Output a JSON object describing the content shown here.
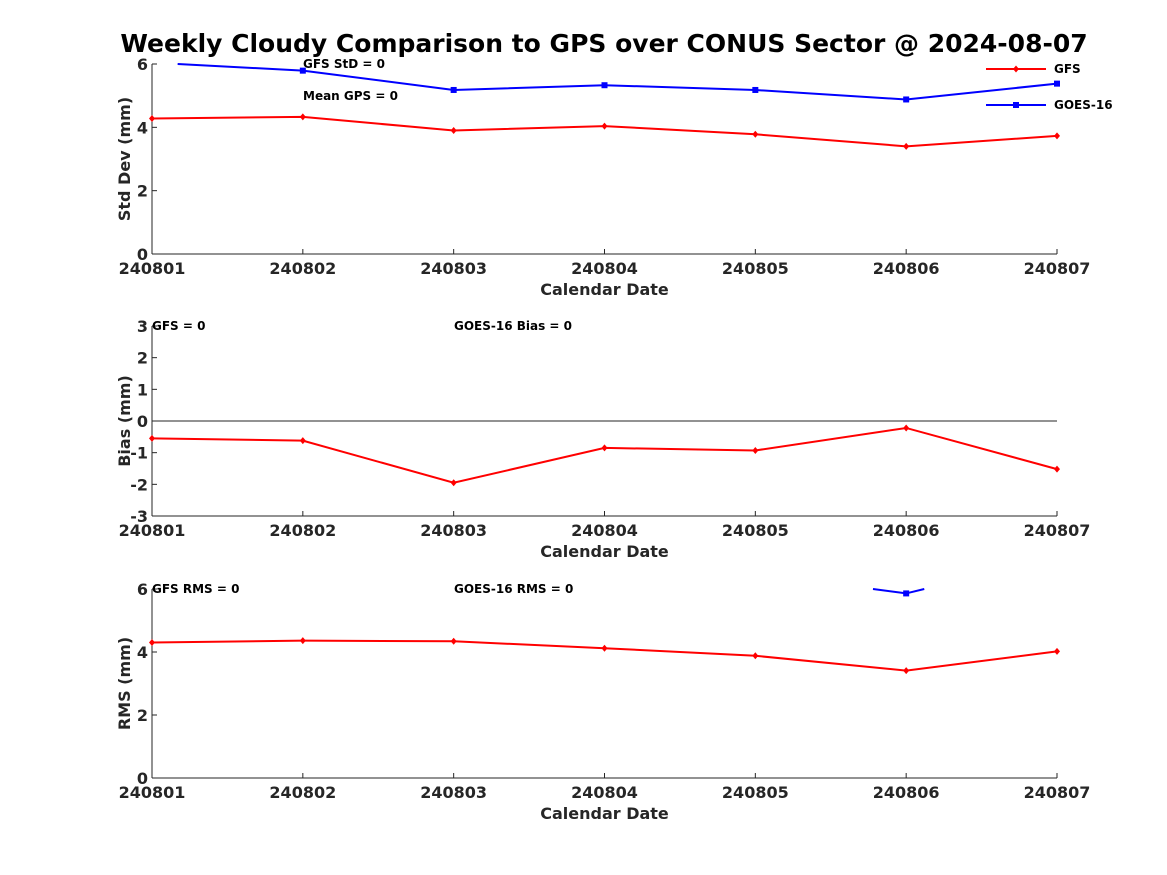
{
  "figure_title": "Weekly Cloudy Comparison to GPS over CONUS Sector @ 2024-08-07",
  "colors": {
    "GFS": "#ff0000",
    "GOES-16": "#0000ff"
  },
  "legend": {
    "placement": "top-right",
    "entries": [
      "GFS",
      "GOES-16"
    ]
  },
  "chart_data": [
    {
      "type": "line",
      "xlabel": "Calendar Date",
      "ylabel": "Std Dev (mm)",
      "xticks": [
        "240801",
        "240802",
        "240803",
        "240804",
        "240805",
        "240806",
        "240807"
      ],
      "ylim": [
        0,
        6
      ],
      "yticks": [
        "0",
        "2",
        "4",
        "6"
      ],
      "annotations": [
        "GFS StD = 0",
        "Mean GPS = 0"
      ],
      "series": [
        {
          "name": "GFS",
          "x": [
            1,
            2,
            3,
            4,
            5,
            6,
            7
          ],
          "values": [
            4.28,
            4.33,
            3.9,
            4.04,
            3.78,
            3.4,
            3.73
          ]
        },
        {
          "name": "GOES-16",
          "x": [
            1.17,
            2,
            3,
            4,
            5,
            6,
            7
          ],
          "values": [
            6.0,
            5.79,
            5.18,
            5.33,
            5.18,
            4.88,
            5.38
          ]
        }
      ]
    },
    {
      "type": "line",
      "xlabel": "Calendar Date",
      "ylabel": "Bias (mm)",
      "xticks": [
        "240801",
        "240802",
        "240803",
        "240804",
        "240805",
        "240806",
        "240807"
      ],
      "ylim": [
        -3,
        3
      ],
      "yticks": [
        "-3",
        "-2",
        "-1",
        "0",
        "1",
        "2",
        "3"
      ],
      "zero_line": true,
      "annotations": [
        "GFS = 0",
        "GOES-16 Bias  = 0"
      ],
      "series": [
        {
          "name": "GFS",
          "x": [
            1,
            2,
            3,
            4,
            5,
            6,
            7
          ],
          "values": [
            -0.55,
            -0.62,
            -1.95,
            -0.85,
            -0.93,
            -0.22,
            -1.52
          ]
        }
      ]
    },
    {
      "type": "line",
      "xlabel": "Calendar Date",
      "ylabel": "RMS (mm)",
      "xticks": [
        "240801",
        "240802",
        "240803",
        "240804",
        "240805",
        "240806",
        "240807"
      ],
      "ylim": [
        0,
        6
      ],
      "yticks": [
        "0",
        "2",
        "4",
        "6"
      ],
      "annotations": [
        "GFS RMS = 0",
        "GOES-16 RMS = 0"
      ],
      "series": [
        {
          "name": "GFS",
          "x": [
            1,
            2,
            3,
            4,
            5,
            6,
            7
          ],
          "values": [
            4.3,
            4.36,
            4.34,
            4.12,
            3.88,
            3.41,
            4.02
          ]
        },
        {
          "name": "GOES-16",
          "x": [
            5.78,
            6,
            6.12
          ],
          "values": [
            6.0,
            5.86,
            6.0
          ]
        }
      ]
    }
  ]
}
